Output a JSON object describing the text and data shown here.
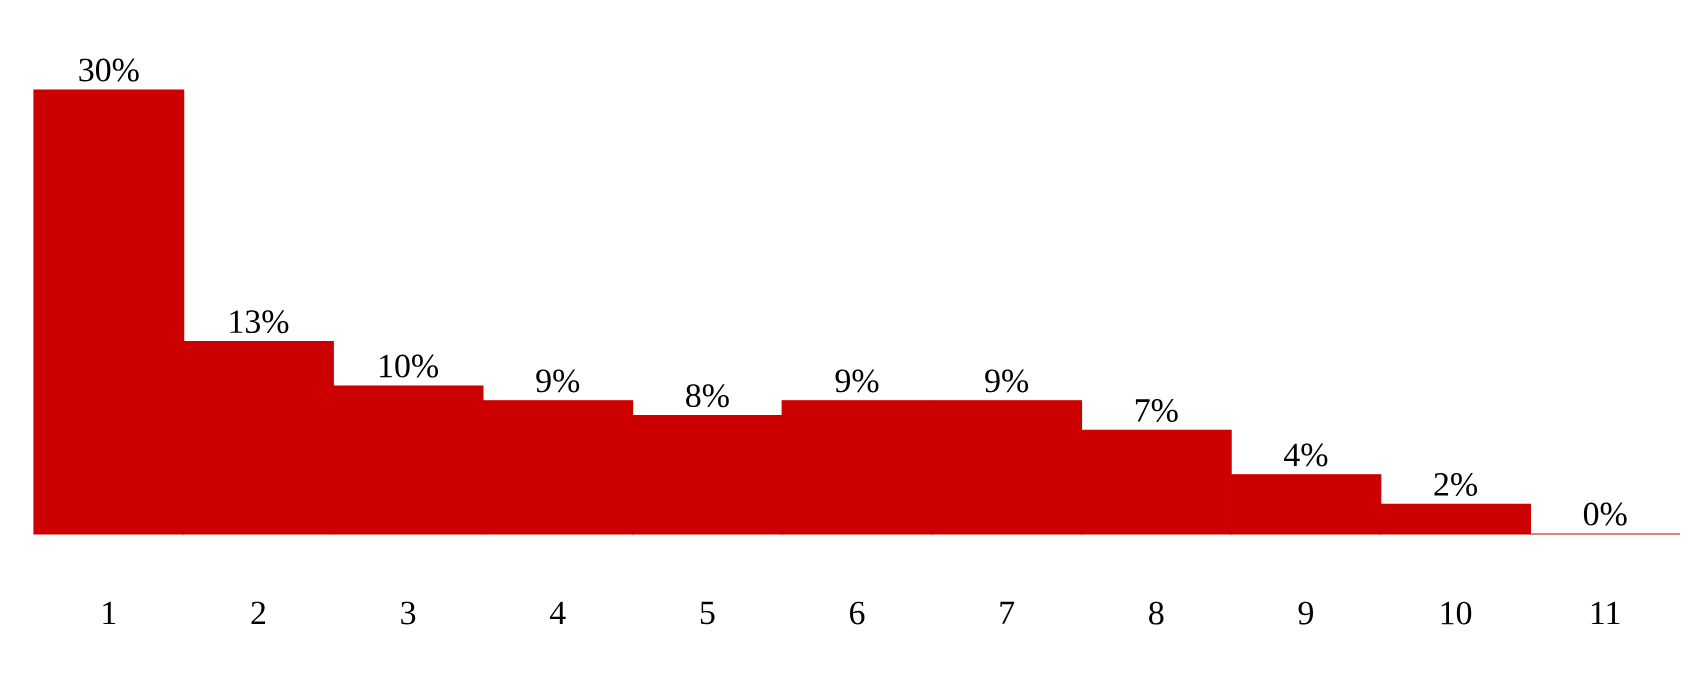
{
  "chart_data": {
    "type": "bar",
    "categories": [
      "1",
      "2",
      "3",
      "4",
      "5",
      "6",
      "7",
      "8",
      "9",
      "10",
      "11"
    ],
    "values": [
      30,
      13,
      10,
      9,
      8,
      9,
      9,
      7,
      4,
      2,
      0
    ],
    "value_labels": [
      "30%",
      "13%",
      "10%",
      "9%",
      "8%",
      "9%",
      "9%",
      "7%",
      "4%",
      "2%",
      "0%"
    ],
    "color": "#cc0000"
  }
}
